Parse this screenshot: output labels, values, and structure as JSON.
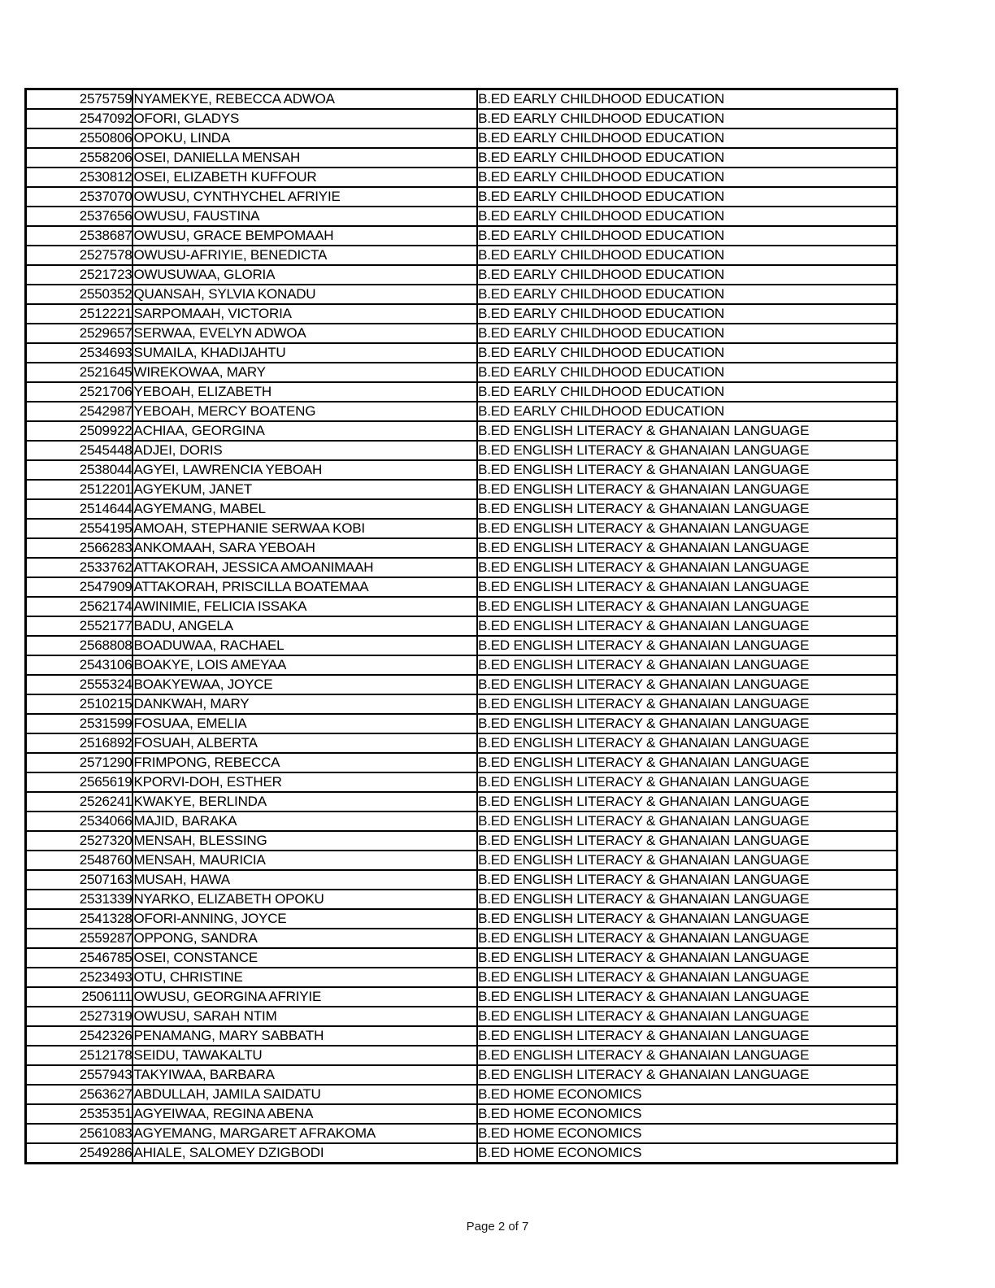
{
  "footer": {
    "text": "Page 2 of 7"
  },
  "table": {
    "rows": [
      {
        "id": "2575759",
        "name": "NYAMEKYE, REBECCA ADWOA",
        "program": "B.ED EARLY CHILDHOOD EDUCATION"
      },
      {
        "id": "2547092",
        "name": "OFORI, GLADYS",
        "program": "B.ED EARLY CHILDHOOD EDUCATION"
      },
      {
        "id": "2550806",
        "name": "OPOKU, LINDA",
        "program": "B.ED EARLY CHILDHOOD EDUCATION"
      },
      {
        "id": "2558206",
        "name": "OSEI, DANIELLA MENSAH",
        "program": "B.ED EARLY CHILDHOOD EDUCATION"
      },
      {
        "id": "2530812",
        "name": "OSEI, ELIZABETH KUFFOUR",
        "program": "B.ED EARLY CHILDHOOD EDUCATION"
      },
      {
        "id": "2537070",
        "name": "OWUSU, CYNTHYCHEL AFRIYIE",
        "program": "B.ED EARLY CHILDHOOD EDUCATION"
      },
      {
        "id": "2537656",
        "name": "OWUSU, FAUSTINA",
        "program": "B.ED EARLY CHILDHOOD EDUCATION"
      },
      {
        "id": "2538687",
        "name": "OWUSU, GRACE BEMPOMAAH",
        "program": "B.ED EARLY CHILDHOOD EDUCATION"
      },
      {
        "id": "2527578",
        "name": "OWUSU-AFRIYIE, BENEDICTA",
        "program": "B.ED EARLY CHILDHOOD EDUCATION"
      },
      {
        "id": "2521723",
        "name": "OWUSUWAA, GLORIA",
        "program": "B.ED EARLY CHILDHOOD EDUCATION"
      },
      {
        "id": "2550352",
        "name": "QUANSAH, SYLVIA KONADU",
        "program": "B.ED EARLY CHILDHOOD EDUCATION"
      },
      {
        "id": "2512221",
        "name": "SARPOMAAH, VICTORIA",
        "program": "B.ED EARLY CHILDHOOD EDUCATION"
      },
      {
        "id": "2529657",
        "name": "SERWAA, EVELYN ADWOA",
        "program": "B.ED EARLY CHILDHOOD EDUCATION"
      },
      {
        "id": "2534693",
        "name": "SUMAILA, KHADIJAHTU",
        "program": "B.ED EARLY CHILDHOOD EDUCATION"
      },
      {
        "id": "2521645",
        "name": "WIREKOWAA, MARY",
        "program": "B.ED EARLY CHILDHOOD EDUCATION"
      },
      {
        "id": "2521706",
        "name": "YEBOAH, ELIZABETH",
        "program": "B.ED EARLY CHILDHOOD EDUCATION"
      },
      {
        "id": "2542987",
        "name": "YEBOAH, MERCY BOATENG",
        "program": "B.ED EARLY CHILDHOOD EDUCATION"
      },
      {
        "id": "2509922",
        "name": "ACHIAA, GEORGINA",
        "program": "B.ED ENGLISH LITERACY & GHANAIAN LANGUAGE"
      },
      {
        "id": "2545448",
        "name": "ADJEI, DORIS",
        "program": "B.ED ENGLISH LITERACY & GHANAIAN LANGUAGE"
      },
      {
        "id": "2538044",
        "name": "AGYEI, LAWRENCIA YEBOAH",
        "program": "B.ED ENGLISH LITERACY & GHANAIAN LANGUAGE"
      },
      {
        "id": "2512201",
        "name": "AGYEKUM, JANET",
        "program": "B.ED ENGLISH LITERACY & GHANAIAN LANGUAGE"
      },
      {
        "id": "2514644",
        "name": "AGYEMANG, MABEL",
        "program": "B.ED ENGLISH LITERACY & GHANAIAN LANGUAGE"
      },
      {
        "id": "2554195",
        "name": "AMOAH, STEPHANIE SERWAA KOBI",
        "program": "B.ED ENGLISH LITERACY & GHANAIAN LANGUAGE"
      },
      {
        "id": "2566283",
        "name": "ANKOMAAH, SARA YEBOAH",
        "program": "B.ED ENGLISH LITERACY & GHANAIAN LANGUAGE"
      },
      {
        "id": "2533762",
        "name": "ATTAKORAH, JESSICA AMOANIMAAH",
        "program": "B.ED ENGLISH LITERACY & GHANAIAN LANGUAGE"
      },
      {
        "id": "2547909",
        "name": "ATTAKORAH, PRISCILLA BOATEMAA",
        "program": "B.ED ENGLISH LITERACY & GHANAIAN LANGUAGE"
      },
      {
        "id": "2562174",
        "name": "AWINIMIE, FELICIA ISSAKA",
        "program": "B.ED ENGLISH LITERACY & GHANAIAN LANGUAGE"
      },
      {
        "id": "2552177",
        "name": "BADU, ANGELA",
        "program": "B.ED ENGLISH LITERACY & GHANAIAN LANGUAGE"
      },
      {
        "id": "2568808",
        "name": "BOADUWAA, RACHAEL",
        "program": "B.ED ENGLISH LITERACY & GHANAIAN LANGUAGE"
      },
      {
        "id": "2543106",
        "name": "BOAKYE, LOIS AMEYAA",
        "program": "B.ED ENGLISH LITERACY & GHANAIAN LANGUAGE"
      },
      {
        "id": "2555324",
        "name": "BOAKYEWAA, JOYCE",
        "program": "B.ED ENGLISH LITERACY & GHANAIAN LANGUAGE"
      },
      {
        "id": "2510215",
        "name": "DANKWAH, MARY",
        "program": "B.ED ENGLISH LITERACY & GHANAIAN LANGUAGE"
      },
      {
        "id": "2531599",
        "name": "FOSUAA, EMELIA",
        "program": "B.ED ENGLISH LITERACY & GHANAIAN LANGUAGE"
      },
      {
        "id": "2516892",
        "name": "FOSUAH, ALBERTA",
        "program": "B.ED ENGLISH LITERACY & GHANAIAN LANGUAGE"
      },
      {
        "id": "2571290",
        "name": "FRIMPONG, REBECCA",
        "program": "B.ED ENGLISH LITERACY & GHANAIAN LANGUAGE"
      },
      {
        "id": "2565619",
        "name": "KPORVI-DOH, ESTHER",
        "program": "B.ED ENGLISH LITERACY & GHANAIAN LANGUAGE"
      },
      {
        "id": "2526241",
        "name": "KWAKYE, BERLINDA",
        "program": "B.ED ENGLISH LITERACY & GHANAIAN LANGUAGE"
      },
      {
        "id": "2534066",
        "name": "MAJID, BARAKA",
        "program": "B.ED ENGLISH LITERACY & GHANAIAN LANGUAGE"
      },
      {
        "id": "2527320",
        "name": "MENSAH, BLESSING",
        "program": "B.ED ENGLISH LITERACY & GHANAIAN LANGUAGE"
      },
      {
        "id": "2548760",
        "name": "MENSAH, MAURICIA",
        "program": "B.ED ENGLISH LITERACY & GHANAIAN LANGUAGE"
      },
      {
        "id": "2507163",
        "name": "MUSAH, HAWA",
        "program": "B.ED ENGLISH LITERACY & GHANAIAN LANGUAGE"
      },
      {
        "id": "2531339",
        "name": "NYARKO, ELIZABETH OPOKU",
        "program": "B.ED ENGLISH LITERACY & GHANAIAN LANGUAGE"
      },
      {
        "id": "2541328",
        "name": "OFORI-ANNING, JOYCE",
        "program": "B.ED ENGLISH LITERACY & GHANAIAN LANGUAGE"
      },
      {
        "id": "2559287",
        "name": "OPPONG, SANDRA",
        "program": "B.ED ENGLISH LITERACY & GHANAIAN LANGUAGE"
      },
      {
        "id": "2546785",
        "name": "OSEI, CONSTANCE",
        "program": "B.ED ENGLISH LITERACY & GHANAIAN LANGUAGE"
      },
      {
        "id": "2523493",
        "name": "OTU, CHRISTINE",
        "program": "B.ED ENGLISH LITERACY & GHANAIAN LANGUAGE"
      },
      {
        "id": "2506111",
        "name": "OWUSU, GEORGINA AFRIYIE",
        "program": "B.ED ENGLISH LITERACY & GHANAIAN LANGUAGE"
      },
      {
        "id": "2527319",
        "name": "OWUSU, SARAH NTIM",
        "program": "B.ED ENGLISH LITERACY & GHANAIAN LANGUAGE"
      },
      {
        "id": "2542326",
        "name": "PENAMANG, MARY SABBATH",
        "program": "B.ED ENGLISH LITERACY & GHANAIAN LANGUAGE"
      },
      {
        "id": "2512178",
        "name": "SEIDU, TAWAKALTU",
        "program": "B.ED ENGLISH LITERACY & GHANAIAN LANGUAGE"
      },
      {
        "id": "2557943",
        "name": "TAKYIWAA, BARBARA",
        "program": "B.ED ENGLISH LITERACY & GHANAIAN LANGUAGE"
      },
      {
        "id": "2563627",
        "name": "ABDULLAH, JAMILA SAIDATU",
        "program": "B.ED HOME ECONOMICS"
      },
      {
        "id": "2535351",
        "name": "AGYEIWAA, REGINA ABENA",
        "program": "B.ED HOME ECONOMICS"
      },
      {
        "id": "2561083",
        "name": "AGYEMANG, MARGARET AFRAKOMA",
        "program": "B.ED HOME ECONOMICS"
      },
      {
        "id": "2549286",
        "name": "AHIALE, SALOMEY DZIGBODI",
        "program": "B.ED HOME ECONOMICS"
      }
    ]
  }
}
